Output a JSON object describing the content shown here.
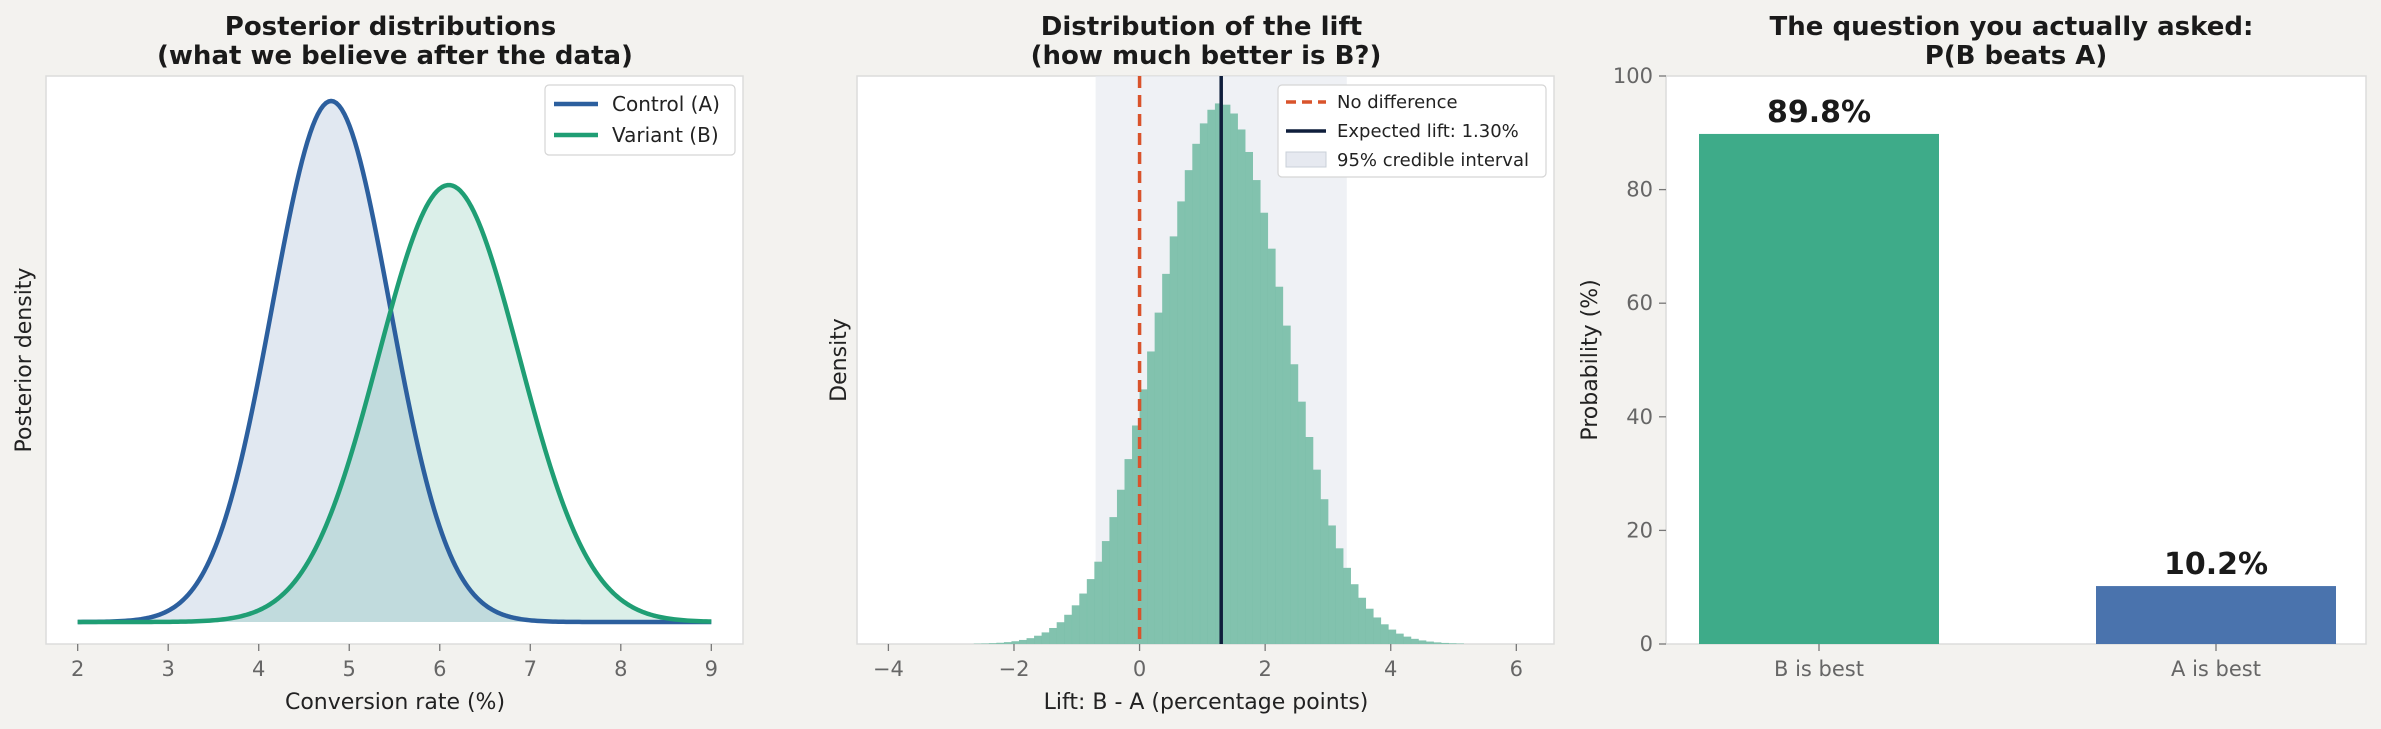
{
  "colors": {
    "figure_bg": "#f3f2ef",
    "panel_bg": "#ffffff",
    "control": "#2c5f9e",
    "variant": "#1f9e74",
    "no_difference": "#d9532b",
    "expected_lift": "#0f1e3c",
    "hist": "#7bbfaa",
    "credible_band": "#e6e9f0",
    "bar_b": "#3eab89",
    "bar_a": "#4a73ad"
  },
  "chart_data": [
    {
      "type": "line",
      "title": "Posterior distributions\n(what we believe after the data)",
      "xlabel": "Conversion rate (%)",
      "ylabel": "Posterior density",
      "xlim": [
        1.65,
        9.35
      ],
      "xticks": [
        2,
        3,
        4,
        5,
        6,
        7,
        8,
        9
      ],
      "yticks_shown": false,
      "grid": false,
      "legend": "top-right",
      "fill_under": true,
      "series": [
        {
          "name": "Control (A)",
          "distribution": "normal",
          "mean": 4.8,
          "sd": 0.65,
          "peak_density": 0.62
        },
        {
          "name": "Variant (B)",
          "distribution": "normal",
          "mean": 6.1,
          "sd": 0.78,
          "peak_density": 0.52
        }
      ]
    },
    {
      "type": "histogram",
      "title": "Distribution of the lift\n(how much better is B?)",
      "xlabel": "Lift: B - A (percentage points)",
      "ylabel": "Density",
      "xlim": [
        -4.5,
        6.6
      ],
      "xticks": [
        -4,
        -2,
        0,
        2,
        4,
        6
      ],
      "yticks_shown": false,
      "grid": false,
      "legend": "top-right",
      "bins": {
        "mean": 1.3,
        "sd": 1.01,
        "start": -4.2,
        "end": 5.4,
        "width": 0.12
      },
      "lines": [
        {
          "name": "No difference",
          "x": 0,
          "style": "dashed"
        },
        {
          "name": "Expected lift: 1.30%",
          "x": 1.3,
          "style": "solid"
        }
      ],
      "band": {
        "name": "95% credible interval",
        "from": -0.7,
        "to": 3.3
      }
    },
    {
      "type": "bar",
      "title": "The question you actually asked:\nP(B beats A)",
      "ylabel": "Probability (%)",
      "ylim": [
        0,
        100
      ],
      "yticks": [
        0,
        20,
        40,
        60,
        80,
        100
      ],
      "grid": false,
      "categories": [
        "B is best",
        "A is best"
      ],
      "values": [
        89.8,
        10.2
      ],
      "labels": [
        "89.8%",
        "10.2%"
      ]
    }
  ]
}
